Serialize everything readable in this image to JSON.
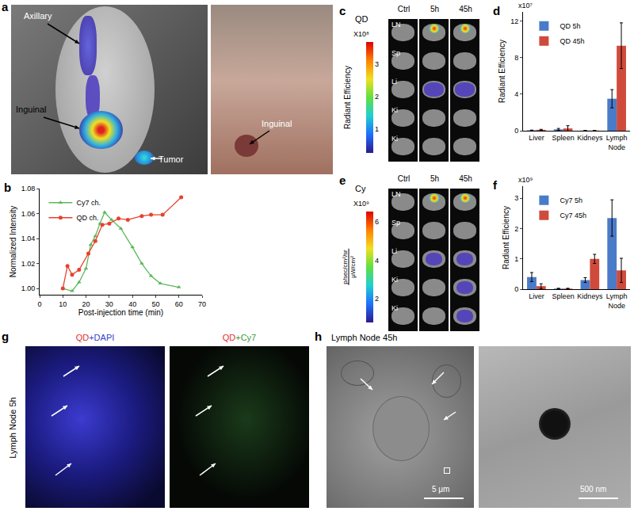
{
  "chart_data": [
    {
      "panel": "b",
      "type": "line",
      "x_label": "Post-injection time (min)",
      "y_label": "Normalized Intensity",
      "xlim": [
        0,
        70
      ],
      "xticks": [
        0,
        10,
        20,
        30,
        40,
        50,
        60,
        70
      ],
      "ylim": [
        0.995,
        1.08
      ],
      "yticks": [
        {
          "value": 1,
          "label": "1.00"
        },
        1.02,
        1.04,
        1.06,
        1.08
      ],
      "grid": false,
      "legend": "upper left",
      "series": [
        {
          "name": "Cy7 ch.",
          "color": "#5cb85c",
          "marker": "triangle",
          "line_style": "solid",
          "x": [
            10,
            14,
            17,
            20,
            22,
            24,
            26,
            28,
            31,
            35,
            40,
            44,
            48,
            52,
            60
          ],
          "values": [
            1.0,
            0.998,
            1.005,
            1.016,
            1.035,
            1.042,
            1.052,
            1.061,
            1.055,
            1.048,
            1.033,
            1.02,
            1.01,
            1.004,
            1.001
          ]
        },
        {
          "name": "QD ch.",
          "color": "#e8412c",
          "marker": "circle",
          "line_style": "solid",
          "x": [
            10,
            12,
            14,
            17,
            21,
            24,
            27,
            30,
            34,
            38,
            44,
            48,
            53,
            61
          ],
          "values": [
            1.0,
            1.018,
            1.011,
            1.015,
            1.028,
            1.038,
            1.051,
            1.052,
            1.056,
            1.055,
            1.058,
            1.059,
            1.059,
            1.073
          ]
        }
      ]
    },
    {
      "panel": "d",
      "type": "bar",
      "y_label": "Radiant Efficiency",
      "annotations": [
        "x10⁷"
      ],
      "categories": [
        "Liver",
        "Spleen",
        "Kidneys",
        "Lymph Node"
      ],
      "ylim": [
        0,
        13
      ],
      "yticks": [
        0,
        4,
        8,
        12
      ],
      "grid": false,
      "legend": "upper left",
      "series": [
        {
          "name": "QD 5h",
          "color": "#4a7bc8",
          "values": [
            0.05,
            0.15,
            0.02,
            3.5
          ],
          "errors": [
            0.02,
            0.1,
            0.01,
            1.0
          ]
        },
        {
          "name": "QD 45h",
          "color": "#d04a3c",
          "values": [
            0.1,
            0.25,
            0.02,
            9.3
          ],
          "errors": [
            0.05,
            0.3,
            0.01,
            2.5
          ]
        }
      ]
    },
    {
      "panel": "f",
      "type": "bar",
      "y_label": "Radiant Efficiency",
      "annotations": [
        "x10⁹"
      ],
      "categories": [
        "Liver",
        "Spleen",
        "Kidneys",
        "Lymph Node"
      ],
      "ylim": [
        0,
        3.4
      ],
      "yticks": [
        0,
        1,
        2,
        3
      ],
      "grid": false,
      "legend": "upper left",
      "series": [
        {
          "name": "Cy7 5h",
          "color": "#4a7bc8",
          "values": [
            0.4,
            0.02,
            0.3,
            2.35
          ],
          "errors": [
            0.15,
            0.01,
            0.08,
            0.6
          ]
        },
        {
          "name": "Cy7 45h",
          "color": "#d04a3c",
          "values": [
            0.1,
            0.02,
            1.0,
            0.62
          ],
          "errors": [
            0.08,
            0.01,
            0.15,
            0.4
          ]
        }
      ]
    }
  ],
  "image_panels": [
    {
      "panel": "a",
      "labels": [
        "Axillary",
        "Inguinal",
        "Tumor",
        "Inguinal"
      ]
    },
    {
      "panel": "c",
      "probe": "QD",
      "columns": [
        "Ctrl",
        "5h",
        "45h"
      ],
      "rows": [
        "LN",
        "Sp",
        "Li",
        "Ki",
        "Ki"
      ],
      "colorbar": {
        "units": [
          "Radiant Efficiency"
        ],
        "multiplier": "X10⁸",
        "range": [
          0.3,
          3.7
        ],
        "ticks": [
          1,
          2,
          3
        ]
      }
    },
    {
      "panel": "e",
      "probe": "Cy",
      "columns": [
        "Ctrl",
        "5h",
        "45h"
      ],
      "rows": [
        "LN",
        "Sp",
        "Li",
        "Ki",
        "Ki"
      ],
      "colorbar": {
        "units": [
          "p/sec/cm²/sr",
          "μW/cm²"
        ],
        "multiplier": "X10⁹",
        "range": [
          0.8,
          6.6
        ],
        "ticks": [
          2,
          4,
          6
        ]
      }
    },
    {
      "panel": "g",
      "row_label": "Lymph Node 5h",
      "images": [
        [
          {
            "text": "QD",
            "color": "#e03030"
          },
          {
            "text": "+DAPI",
            "color": "#3344cc"
          }
        ],
        [
          {
            "text": "QD",
            "color": "#e03030"
          },
          {
            "text": "+Cy7",
            "color": "#3a9a3a"
          }
        ]
      ]
    },
    {
      "panel": "h",
      "row_label": "Lymph Node 45h",
      "scale_bars": [
        "5 μm",
        "500 nm"
      ]
    }
  ]
}
